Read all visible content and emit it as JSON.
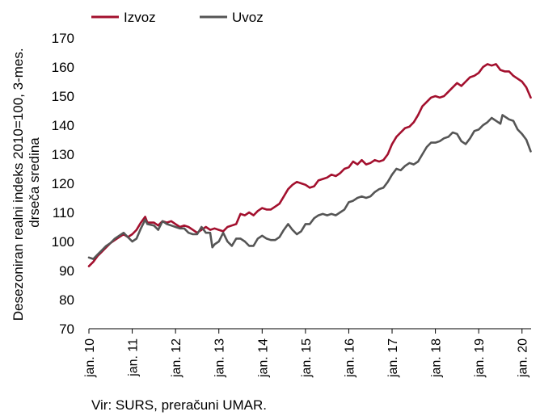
{
  "chart_data": {
    "type": "line",
    "ylabel": [
      "Desezoniran realni indeks 2010=100, 3-mes.",
      "drseča sredina"
    ],
    "ylim": [
      70,
      170
    ],
    "yticks": [
      "70",
      "80",
      "90",
      "100",
      "110",
      "120",
      "130",
      "140",
      "150",
      "160",
      "170"
    ],
    "xlim": [
      2010.0,
      2020.21
    ],
    "xticks": [
      {
        "label": "jan. 10",
        "x": 2010
      },
      {
        "label": "jan. 11",
        "x": 2011
      },
      {
        "label": "jan. 12",
        "x": 2012
      },
      {
        "label": "jan. 13",
        "x": 2013
      },
      {
        "label": "jan. 14",
        "x": 2014
      },
      {
        "label": "jan. 15",
        "x": 2015
      },
      {
        "label": "jan. 16",
        "x": 2016
      },
      {
        "label": "jan. 17",
        "x": 2017
      },
      {
        "label": "jan. 18",
        "x": 2018
      },
      {
        "label": "jan. 19",
        "x": 2019
      },
      {
        "label": "jan. 20",
        "x": 2020
      }
    ],
    "grid": false,
    "legend_position": "top-left",
    "series": [
      {
        "name": "Izvoz",
        "color": "#a3102e",
        "points": [
          [
            2010.0,
            91.5
          ],
          [
            2010.1,
            93
          ],
          [
            2010.2,
            95
          ],
          [
            2010.3,
            96.5
          ],
          [
            2010.4,
            98
          ],
          [
            2010.5,
            99.5
          ],
          [
            2010.6,
            100.5
          ],
          [
            2010.7,
            101.5
          ],
          [
            2010.8,
            102.5
          ],
          [
            2010.9,
            101.5
          ],
          [
            2011.0,
            102.5
          ],
          [
            2011.1,
            104
          ],
          [
            2011.2,
            106.5
          ],
          [
            2011.3,
            108.5
          ],
          [
            2011.35,
            106.5
          ],
          [
            2011.5,
            106.5
          ],
          [
            2011.6,
            105.5
          ],
          [
            2011.7,
            107
          ],
          [
            2011.8,
            106.5
          ],
          [
            2011.9,
            107
          ],
          [
            2012.0,
            106
          ],
          [
            2012.1,
            105
          ],
          [
            2012.2,
            105.5
          ],
          [
            2012.3,
            105
          ],
          [
            2012.4,
            104
          ],
          [
            2012.5,
            103
          ],
          [
            2012.6,
            104
          ],
          [
            2012.7,
            105
          ],
          [
            2012.8,
            104
          ],
          [
            2012.9,
            104.5
          ],
          [
            2013.0,
            104
          ],
          [
            2013.1,
            103.5
          ],
          [
            2013.2,
            105
          ],
          [
            2013.3,
            105.5
          ],
          [
            2013.4,
            106
          ],
          [
            2013.5,
            109.5
          ],
          [
            2013.6,
            109
          ],
          [
            2013.7,
            110
          ],
          [
            2013.8,
            109
          ],
          [
            2013.9,
            110.5
          ],
          [
            2014.0,
            111.5
          ],
          [
            2014.1,
            111
          ],
          [
            2014.2,
            111
          ],
          [
            2014.3,
            112
          ],
          [
            2014.4,
            113
          ],
          [
            2014.5,
            115.5
          ],
          [
            2014.6,
            118
          ],
          [
            2014.7,
            119.5
          ],
          [
            2014.8,
            120.5
          ],
          [
            2014.9,
            120
          ],
          [
            2015.0,
            119.5
          ],
          [
            2015.1,
            118.5
          ],
          [
            2015.2,
            119
          ],
          [
            2015.3,
            121
          ],
          [
            2015.4,
            121.5
          ],
          [
            2015.5,
            122
          ],
          [
            2015.6,
            123
          ],
          [
            2015.7,
            122.5
          ],
          [
            2015.8,
            123.5
          ],
          [
            2015.9,
            125
          ],
          [
            2016.0,
            125.5
          ],
          [
            2016.1,
            127.5
          ],
          [
            2016.2,
            126.5
          ],
          [
            2016.3,
            128
          ],
          [
            2016.4,
            126.5
          ],
          [
            2016.5,
            127
          ],
          [
            2016.6,
            128
          ],
          [
            2016.7,
            127.5
          ],
          [
            2016.8,
            128
          ],
          [
            2016.9,
            130
          ],
          [
            2017.0,
            133.5
          ],
          [
            2017.1,
            136
          ],
          [
            2017.2,
            137.5
          ],
          [
            2017.3,
            139
          ],
          [
            2017.4,
            139.5
          ],
          [
            2017.5,
            141
          ],
          [
            2017.6,
            143.5
          ],
          [
            2017.7,
            146.5
          ],
          [
            2017.8,
            148
          ],
          [
            2017.9,
            149.5
          ],
          [
            2018.0,
            150
          ],
          [
            2018.1,
            149.5
          ],
          [
            2018.2,
            150
          ],
          [
            2018.3,
            151.5
          ],
          [
            2018.4,
            153
          ],
          [
            2018.5,
            154.5
          ],
          [
            2018.6,
            153.5
          ],
          [
            2018.7,
            155
          ],
          [
            2018.8,
            156.5
          ],
          [
            2018.9,
            157
          ],
          [
            2019.0,
            158
          ],
          [
            2019.1,
            160
          ],
          [
            2019.2,
            161
          ],
          [
            2019.3,
            160.5
          ],
          [
            2019.4,
            161
          ],
          [
            2019.5,
            159
          ],
          [
            2019.6,
            158.5
          ],
          [
            2019.7,
            158.5
          ],
          [
            2019.8,
            157
          ],
          [
            2019.9,
            156
          ],
          [
            2020.0,
            155
          ],
          [
            2020.1,
            153
          ],
          [
            2020.2,
            149.5
          ]
        ]
      },
      {
        "name": "Uvoz",
        "color": "#555555",
        "points": [
          [
            2010.0,
            94.5
          ],
          [
            2010.1,
            94
          ],
          [
            2010.2,
            95.5
          ],
          [
            2010.3,
            97
          ],
          [
            2010.4,
            98.5
          ],
          [
            2010.5,
            99.5
          ],
          [
            2010.6,
            101
          ],
          [
            2010.7,
            102
          ],
          [
            2010.8,
            103
          ],
          [
            2010.9,
            101.5
          ],
          [
            2011.0,
            100
          ],
          [
            2011.1,
            101
          ],
          [
            2011.2,
            104.5
          ],
          [
            2011.3,
            107.5
          ],
          [
            2011.35,
            106
          ],
          [
            2011.5,
            105.5
          ],
          [
            2011.6,
            104
          ],
          [
            2011.7,
            107
          ],
          [
            2011.8,
            106
          ],
          [
            2011.9,
            105.5
          ],
          [
            2012.0,
            105
          ],
          [
            2012.1,
            104.5
          ],
          [
            2012.2,
            104.5
          ],
          [
            2012.3,
            103
          ],
          [
            2012.4,
            102.5
          ],
          [
            2012.5,
            102.5
          ],
          [
            2012.6,
            105
          ],
          [
            2012.7,
            103
          ],
          [
            2012.8,
            103
          ],
          [
            2012.85,
            98
          ],
          [
            2012.9,
            99
          ],
          [
            2013.0,
            100
          ],
          [
            2013.1,
            103
          ],
          [
            2013.2,
            100
          ],
          [
            2013.3,
            98.5
          ],
          [
            2013.4,
            101
          ],
          [
            2013.5,
            101
          ],
          [
            2013.6,
            100
          ],
          [
            2013.7,
            98.5
          ],
          [
            2013.8,
            98.5
          ],
          [
            2013.9,
            101
          ],
          [
            2014.0,
            102
          ],
          [
            2014.1,
            101
          ],
          [
            2014.2,
            100.5
          ],
          [
            2014.3,
            100.5
          ],
          [
            2014.4,
            101.5
          ],
          [
            2014.5,
            104
          ],
          [
            2014.6,
            106
          ],
          [
            2014.7,
            104
          ],
          [
            2014.8,
            102.5
          ],
          [
            2014.9,
            103.5
          ],
          [
            2015.0,
            106
          ],
          [
            2015.1,
            106
          ],
          [
            2015.2,
            108
          ],
          [
            2015.3,
            109
          ],
          [
            2015.4,
            109.5
          ],
          [
            2015.5,
            109
          ],
          [
            2015.6,
            109.5
          ],
          [
            2015.7,
            109
          ],
          [
            2015.8,
            110
          ],
          [
            2015.9,
            111
          ],
          [
            2016.0,
            113.5
          ],
          [
            2016.1,
            114
          ],
          [
            2016.2,
            115
          ],
          [
            2016.3,
            115.5
          ],
          [
            2016.4,
            115
          ],
          [
            2016.5,
            115.5
          ],
          [
            2016.6,
            117
          ],
          [
            2016.7,
            118
          ],
          [
            2016.8,
            118.5
          ],
          [
            2016.9,
            120.5
          ],
          [
            2017.0,
            123
          ],
          [
            2017.1,
            125
          ],
          [
            2017.2,
            124.5
          ],
          [
            2017.3,
            126
          ],
          [
            2017.4,
            127
          ],
          [
            2017.5,
            126.5
          ],
          [
            2017.6,
            127.5
          ],
          [
            2017.7,
            130
          ],
          [
            2017.8,
            132.5
          ],
          [
            2017.9,
            134
          ],
          [
            2018.0,
            134
          ],
          [
            2018.1,
            134.5
          ],
          [
            2018.2,
            135.5
          ],
          [
            2018.3,
            136
          ],
          [
            2018.4,
            137.5
          ],
          [
            2018.5,
            137
          ],
          [
            2018.6,
            134.5
          ],
          [
            2018.7,
            133.5
          ],
          [
            2018.8,
            135.5
          ],
          [
            2018.9,
            138
          ],
          [
            2019.0,
            138.5
          ],
          [
            2019.1,
            140
          ],
          [
            2019.2,
            141
          ],
          [
            2019.3,
            142.5
          ],
          [
            2019.4,
            141.5
          ],
          [
            2019.5,
            140.5
          ],
          [
            2019.55,
            143.5
          ],
          [
            2019.7,
            142
          ],
          [
            2019.8,
            141.5
          ],
          [
            2019.9,
            138.5
          ],
          [
            2020.0,
            137
          ],
          [
            2020.1,
            135
          ],
          [
            2020.2,
            131
          ]
        ]
      }
    ]
  },
  "source_text": "Vir: SURS, preračuni UMAR."
}
